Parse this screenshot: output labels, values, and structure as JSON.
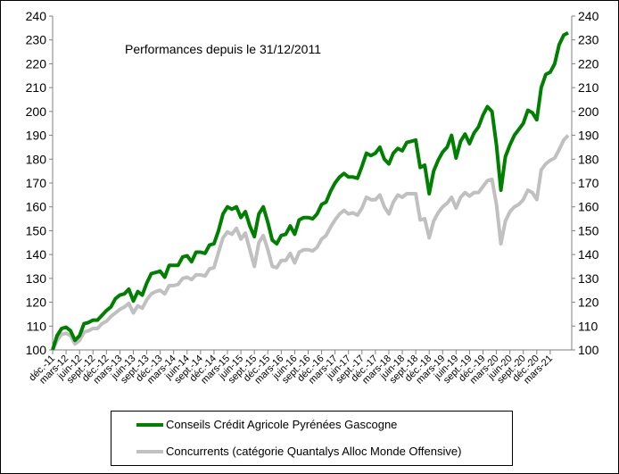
{
  "chart_data": {
    "type": "line",
    "title": "Performances depuis le 31/12/2011",
    "xlabel": "",
    "ylabel": "",
    "ylim": [
      100,
      240
    ],
    "y_ticks": [
      100,
      110,
      120,
      130,
      140,
      150,
      160,
      170,
      180,
      190,
      200,
      210,
      220,
      230,
      240
    ],
    "y_axis_sides": "left-and-right",
    "grid": false,
    "legend_placement": "bottom",
    "x_tick_labels": [
      "déc.-11",
      "mars-12",
      "juin-12",
      "sept.-12",
      "déc.-12",
      "mars-13",
      "juin-13",
      "sept.-13",
      "déc.-13",
      "mars-14",
      "juin-14",
      "sept.-14",
      "déc.-14",
      "mars-15",
      "juin-15",
      "sept.-15",
      "déc.-15",
      "mars-16",
      "juin-16",
      "sept.-16",
      "déc.-16",
      "mars-17",
      "juin-17",
      "sept.-17",
      "déc.-17",
      "mars-18",
      "juin-18",
      "sept.-18",
      "déc.-18",
      "mars-19",
      "juin-19",
      "sept.-19",
      "déc.-19",
      "mars-20",
      "juin-20",
      "sept.-20",
      "déc.-20",
      "mars-21"
    ],
    "x_frequency": "monthly from déc.-11",
    "series": [
      {
        "name": "Conseils Crédit Agricole Pyrénées Gascogne",
        "color": "#008000",
        "values": [
          100,
          106,
          109,
          109.5,
          108,
          104,
          106,
          111,
          111.5,
          112.5,
          112.5,
          114.5,
          116.5,
          118,
          121.5,
          123,
          123.5,
          125.5,
          120.5,
          124.5,
          123,
          128,
          132,
          132.5,
          133,
          130.5,
          135.5,
          135.5,
          135.5,
          139,
          139.5,
          137,
          141,
          141,
          140.5,
          144,
          144.5,
          150,
          157,
          160,
          159,
          160,
          155.5,
          158,
          152,
          147.5,
          157,
          160,
          153.5,
          146,
          144.5,
          148,
          148.5,
          152,
          148.5,
          154.5,
          155.5,
          155.5,
          155,
          157,
          161,
          162,
          166.5,
          170,
          172.5,
          174,
          172.5,
          172.5,
          172,
          177,
          182.5,
          181.5,
          182.5,
          185,
          180,
          178,
          182.5,
          184.5,
          183.5,
          187,
          187.5,
          188,
          176.5,
          177.5,
          165.5,
          175,
          179.5,
          183,
          185,
          190,
          180.5,
          187.5,
          190.5,
          186.5,
          191,
          193.5,
          198.5,
          202,
          200,
          186,
          167,
          181,
          186,
          190,
          192.5,
          195,
          200.5,
          199.5,
          196.5,
          210,
          215.5,
          216.5,
          220,
          228,
          232,
          233
        ]
      },
      {
        "name": "Concurrents (catégorie Quantalys Alloc Monde Offensive)",
        "color": "#c0c0c0",
        "values": [
          100,
          104,
          106.5,
          107,
          106,
          102.5,
          104,
          107.5,
          108,
          109,
          109,
          111,
          112,
          114,
          115.5,
          117,
          118,
          119.5,
          115.5,
          118.5,
          117.5,
          121,
          123.5,
          124.5,
          125,
          123.5,
          127,
          127,
          127.5,
          130,
          130.5,
          129.5,
          131.5,
          131.5,
          131,
          134,
          134.5,
          141,
          147,
          149.5,
          148.5,
          151,
          146.5,
          149,
          142,
          135,
          145,
          148,
          142,
          135,
          134.5,
          137.5,
          137.5,
          140.5,
          136.5,
          141,
          142,
          142,
          141.5,
          143,
          146.5,
          148,
          151.5,
          154.5,
          157,
          158.5,
          157,
          157.5,
          156.5,
          159.5,
          164,
          163,
          163,
          165,
          160,
          157,
          162,
          165,
          164,
          165.5,
          165.5,
          165.5,
          154.5,
          155,
          147,
          154,
          157.5,
          160,
          161.5,
          164,
          159.5,
          164,
          166,
          164.5,
          166,
          166,
          168.5,
          171,
          171.5,
          161,
          144.5,
          154,
          158,
          160,
          161,
          163,
          167,
          166,
          163,
          175.5,
          178,
          179.5,
          180.5,
          184,
          188,
          190
        ]
      }
    ]
  }
}
